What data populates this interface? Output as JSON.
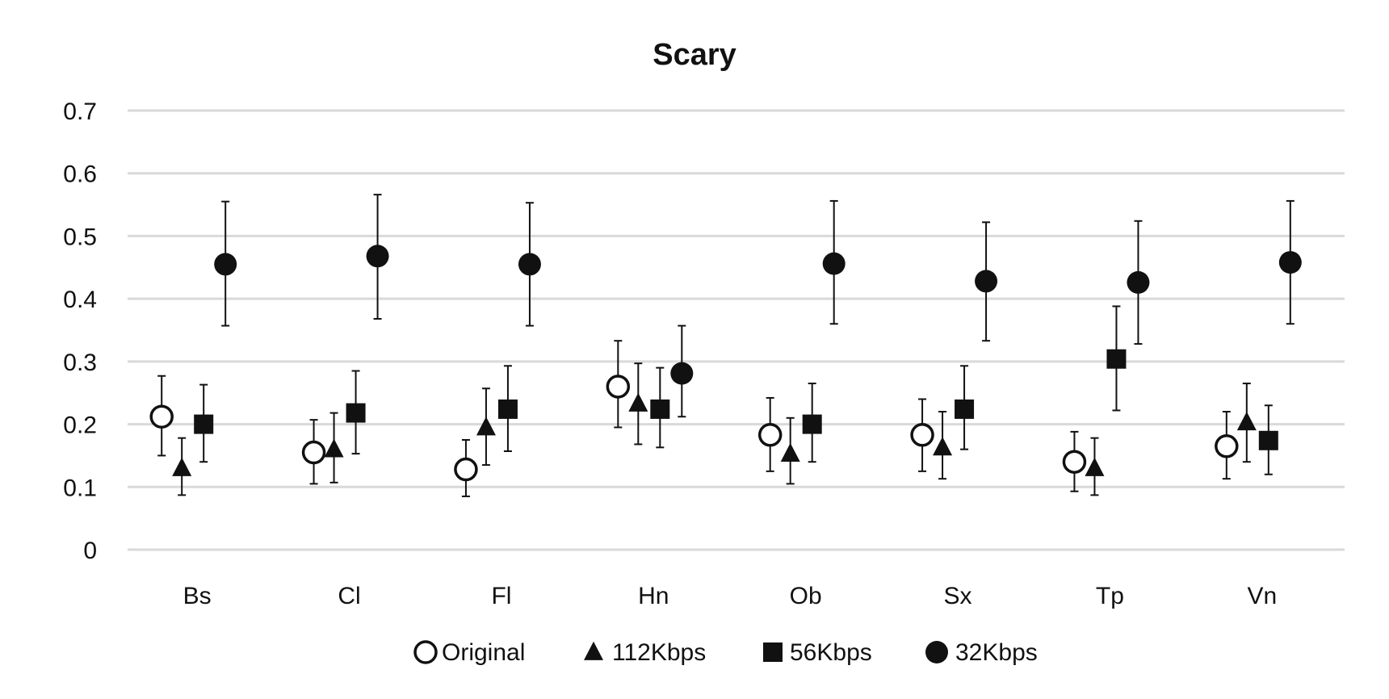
{
  "chart_data": {
    "type": "scatter",
    "title": "Scary",
    "xlabel": "",
    "ylabel": "",
    "categories": [
      "Bs",
      "Cl",
      "Fl",
      "Hn",
      "Ob",
      "Sx",
      "Tp",
      "Vn"
    ],
    "ylim": [
      0,
      0.7
    ],
    "yticks": [
      0,
      0.1,
      0.2,
      0.3,
      0.4,
      0.5,
      0.6,
      0.7
    ],
    "ytick_labels": [
      "0",
      "0.1",
      "0.2",
      "0.3",
      "0.4",
      "0.5",
      "0.6",
      "0.7"
    ],
    "grid": "horizontal",
    "legend_position": "bottom",
    "series": [
      {
        "name": "Original",
        "marker": "open-circle",
        "values": [
          0.212,
          0.155,
          0.128,
          0.26,
          0.183,
          0.183,
          0.14,
          0.165
        ],
        "error_low": [
          0.15,
          0.105,
          0.085,
          0.195,
          0.125,
          0.125,
          0.093,
          0.113
        ],
        "error_high": [
          0.277,
          0.207,
          0.175,
          0.333,
          0.242,
          0.24,
          0.188,
          0.22
        ]
      },
      {
        "name": "112Kbps",
        "marker": "filled-triangle",
        "values": [
          0.13,
          0.16,
          0.195,
          0.233,
          0.153,
          0.163,
          0.13,
          0.203
        ],
        "error_low": [
          0.087,
          0.107,
          0.135,
          0.168,
          0.105,
          0.113,
          0.087,
          0.14
        ],
        "error_high": [
          0.178,
          0.218,
          0.257,
          0.297,
          0.21,
          0.22,
          0.178,
          0.265
        ]
      },
      {
        "name": "56Kbps",
        "marker": "filled-square",
        "values": [
          0.2,
          0.218,
          0.224,
          0.224,
          0.2,
          0.224,
          0.304,
          0.174
        ],
        "error_low": [
          0.14,
          0.153,
          0.157,
          0.163,
          0.14,
          0.16,
          0.222,
          0.12
        ],
        "error_high": [
          0.263,
          0.285,
          0.293,
          0.29,
          0.265,
          0.293,
          0.388,
          0.23
        ]
      },
      {
        "name": "32Kbps",
        "marker": "filled-circle",
        "values": [
          0.455,
          0.468,
          0.455,
          0.281,
          0.456,
          0.428,
          0.426,
          0.458
        ],
        "error_low": [
          0.357,
          0.368,
          0.357,
          0.212,
          0.36,
          0.333,
          0.328,
          0.36
        ],
        "error_high": [
          0.555,
          0.566,
          0.553,
          0.357,
          0.556,
          0.522,
          0.524,
          0.556
        ]
      }
    ]
  }
}
